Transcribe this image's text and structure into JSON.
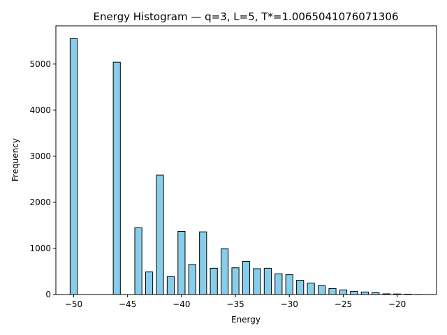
{
  "chart_data": {
    "type": "bar",
    "title": "Energy Histogram — q=3, L=5, T*=1.0065041076071306",
    "xlabel": "Energy",
    "ylabel": "Frequency",
    "xlim": [
      -51.65,
      -16.35
    ],
    "ylim": [
      0,
      5830
    ],
    "xticks": [
      -50,
      -45,
      -40,
      -35,
      -30,
      -25,
      -20
    ],
    "xtick_labels": [
      "−50",
      "−45",
      "−40",
      "−35",
      "−30",
      "−25",
      "−20"
    ],
    "yticks": [
      0,
      1000,
      2000,
      3000,
      4000,
      5000
    ],
    "ytick_labels": [
      "0",
      "1000",
      "2000",
      "3000",
      "4000",
      "5000"
    ],
    "bin_width": 0.66,
    "bar_color": "#87CEEB",
    "edge_color": "#000000",
    "bins": [
      {
        "x": -50,
        "count": 5550
      },
      {
        "x": -46,
        "count": 5040
      },
      {
        "x": -44,
        "count": 1450
      },
      {
        "x": -43,
        "count": 490
      },
      {
        "x": -42,
        "count": 2590
      },
      {
        "x": -41,
        "count": 390
      },
      {
        "x": -40,
        "count": 1370
      },
      {
        "x": -39,
        "count": 650
      },
      {
        "x": -38,
        "count": 1360
      },
      {
        "x": -37,
        "count": 570
      },
      {
        "x": -36,
        "count": 990
      },
      {
        "x": -35,
        "count": 580
      },
      {
        "x": -34,
        "count": 720
      },
      {
        "x": -33,
        "count": 560
      },
      {
        "x": -32,
        "count": 570
      },
      {
        "x": -31,
        "count": 450
      },
      {
        "x": -30,
        "count": 430
      },
      {
        "x": -29,
        "count": 310
      },
      {
        "x": -28,
        "count": 250
      },
      {
        "x": -27,
        "count": 190
      },
      {
        "x": -26,
        "count": 130
      },
      {
        "x": -25,
        "count": 100
      },
      {
        "x": -24,
        "count": 70
      },
      {
        "x": -23,
        "count": 55
      },
      {
        "x": -22,
        "count": 40
      },
      {
        "x": -21,
        "count": 15
      },
      {
        "x": -20,
        "count": 12
      },
      {
        "x": -19,
        "count": 8
      },
      {
        "x": -18,
        "count": 2
      },
      {
        "x": -17,
        "count": 1
      }
    ]
  }
}
